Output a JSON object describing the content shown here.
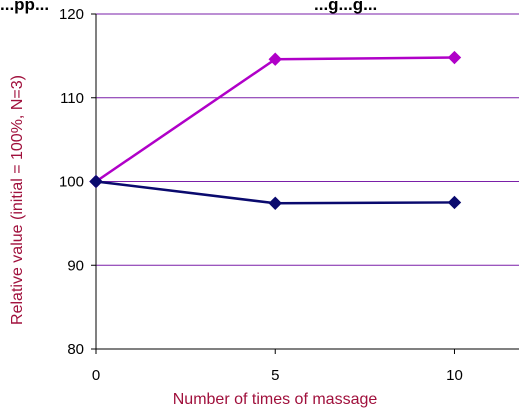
{
  "chart_data": {
    "type": "line",
    "title": "...pp...",
    "title_right": "...g...g...",
    "xlabel": "Number of times of massage",
    "ylabel": "Relative value (initial = 100%, N=3)",
    "x": [
      0,
      5,
      10
    ],
    "xlim": [
      0,
      11.8
    ],
    "ylim": [
      80,
      120
    ],
    "xticks": [
      "0",
      "5",
      "10"
    ],
    "yticks": [
      "80",
      "90",
      "100",
      "110",
      "120"
    ],
    "grid": true,
    "legend": "none",
    "series": [
      {
        "values": [
          100,
          114.6,
          114.8
        ],
        "color": "#b000c8",
        "marker": "diamond"
      },
      {
        "values": [
          100,
          97.4,
          97.5
        ],
        "color": "#0a0a6e",
        "marker": "diamond"
      }
    ],
    "gridline_color": "#7a1fa8",
    "axis_title_color": "#a0103c"
  }
}
